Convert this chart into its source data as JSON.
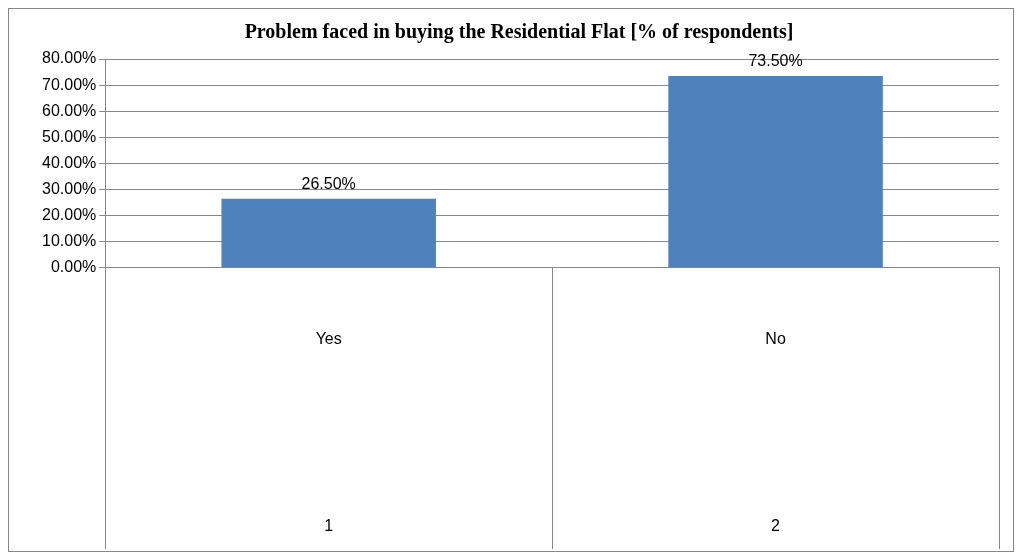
{
  "chart_data": {
    "type": "bar",
    "title": "Problem faced in buying the Residential Flat [% of respondents]",
    "categories": [
      "Yes",
      "No"
    ],
    "values": [
      26.5,
      73.5
    ],
    "value_labels": [
      "26.50%",
      "73.50%"
    ],
    "color": "#4f81bd",
    "ylim": [
      0,
      80
    ],
    "yticks": [
      {
        "value": 0,
        "label": "0.00%"
      },
      {
        "value": 10,
        "label": "10.00%"
      },
      {
        "value": 20,
        "label": "20.00%"
      },
      {
        "value": 30,
        "label": "30.00%"
      },
      {
        "value": 40,
        "label": "40.00%"
      },
      {
        "value": 50,
        "label": "50.00%"
      },
      {
        "value": 60,
        "label": "60.00%"
      },
      {
        "value": 70,
        "label": "70.00%"
      },
      {
        "value": 80,
        "label": "80.00%"
      }
    ],
    "grid": "y",
    "legend": false,
    "annotations": [
      "1",
      "2"
    ]
  }
}
